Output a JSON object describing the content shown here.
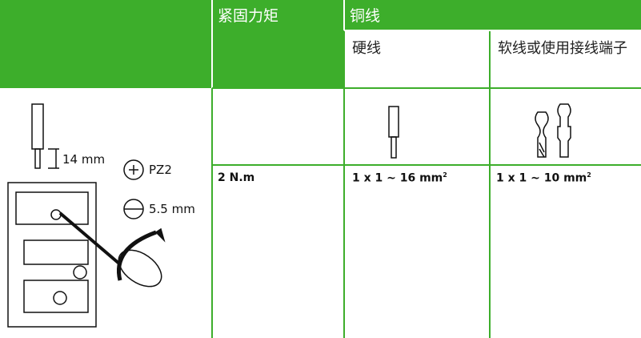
{
  "header": {
    "torque": "紧固力矩",
    "copper": "铜线",
    "solid": "硬线",
    "flexible": "软线或使用接线端子"
  },
  "illustration": {
    "strip_length": "14 mm",
    "screwdriver_pz": "PZ2",
    "screwdriver_flat": "5.5 mm"
  },
  "table": {
    "torque": "2 N.m",
    "solid": {
      "text": "1 x 1 ~ 16 mm",
      "sup": "2"
    },
    "flexible": {
      "text": "1 x 1 ~ 10 mm",
      "sup": "2"
    }
  }
}
